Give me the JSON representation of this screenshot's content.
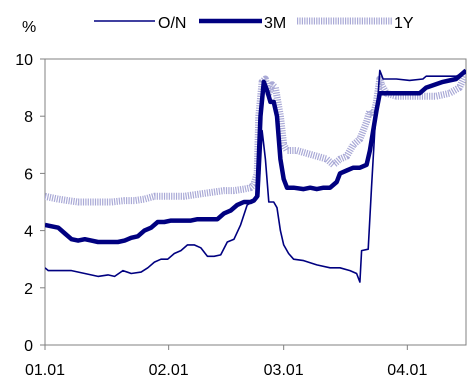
{
  "chart_data": {
    "type": "line",
    "title": "",
    "xlabel": "",
    "ylabel": "%",
    "ylim": [
      0,
      10
    ],
    "yticks": [
      0,
      2,
      4,
      6,
      8,
      10
    ],
    "xlim": [
      0,
      1.27
    ],
    "xticks": [
      {
        "value": 0.0,
        "label": "01.01"
      },
      {
        "value": 0.373,
        "label": "02.01"
      },
      {
        "value": 0.72,
        "label": "03.01"
      },
      {
        "value": 1.093,
        "label": "04.01"
      }
    ],
    "grid": false,
    "legend_position": "top",
    "series": [
      {
        "name": "O/N",
        "color": "#000080",
        "style": "thin",
        "points": [
          [
            0.0,
            2.7
          ],
          [
            0.01,
            2.6
          ],
          [
            0.04,
            2.6
          ],
          [
            0.08,
            2.6
          ],
          [
            0.12,
            2.5
          ],
          [
            0.16,
            2.4
          ],
          [
            0.19,
            2.45
          ],
          [
            0.21,
            2.4
          ],
          [
            0.235,
            2.6
          ],
          [
            0.26,
            2.5
          ],
          [
            0.29,
            2.55
          ],
          [
            0.31,
            2.7
          ],
          [
            0.33,
            2.9
          ],
          [
            0.35,
            3.0
          ],
          [
            0.37,
            3.0
          ],
          [
            0.39,
            3.2
          ],
          [
            0.41,
            3.3
          ],
          [
            0.43,
            3.5
          ],
          [
            0.45,
            3.5
          ],
          [
            0.47,
            3.4
          ],
          [
            0.49,
            3.1
          ],
          [
            0.51,
            3.1
          ],
          [
            0.53,
            3.15
          ],
          [
            0.55,
            3.6
          ],
          [
            0.57,
            3.7
          ],
          [
            0.59,
            4.2
          ],
          [
            0.61,
            4.9
          ],
          [
            0.625,
            5.0
          ],
          [
            0.635,
            5.1
          ],
          [
            0.645,
            5.2
          ],
          [
            0.655,
            7.5
          ],
          [
            0.665,
            6.5
          ],
          [
            0.675,
            5.0
          ],
          [
            0.69,
            5.0
          ],
          [
            0.7,
            4.8
          ],
          [
            0.71,
            4.0
          ],
          [
            0.72,
            3.5
          ],
          [
            0.735,
            3.2
          ],
          [
            0.75,
            3.0
          ],
          [
            0.78,
            2.95
          ],
          [
            0.82,
            2.8
          ],
          [
            0.86,
            2.7
          ],
          [
            0.89,
            2.7
          ],
          [
            0.92,
            2.6
          ],
          [
            0.94,
            2.5
          ],
          [
            0.95,
            2.2
          ],
          [
            0.955,
            3.3
          ],
          [
            0.975,
            3.35
          ],
          [
            0.985,
            5.5
          ],
          [
            0.995,
            7.5
          ],
          [
            1.005,
            8.8
          ],
          [
            1.01,
            9.6
          ],
          [
            1.02,
            9.3
          ],
          [
            1.06,
            9.3
          ],
          [
            1.1,
            9.25
          ],
          [
            1.14,
            9.3
          ],
          [
            1.15,
            9.4
          ],
          [
            1.2,
            9.4
          ],
          [
            1.24,
            9.4
          ],
          [
            1.26,
            9.5
          ],
          [
            1.27,
            9.5
          ]
        ]
      },
      {
        "name": "3M",
        "color": "#000080",
        "style": "thick",
        "points": [
          [
            0.0,
            4.2
          ],
          [
            0.02,
            4.15
          ],
          [
            0.04,
            4.1
          ],
          [
            0.06,
            3.9
          ],
          [
            0.08,
            3.7
          ],
          [
            0.1,
            3.65
          ],
          [
            0.12,
            3.7
          ],
          [
            0.14,
            3.65
          ],
          [
            0.16,
            3.6
          ],
          [
            0.18,
            3.6
          ],
          [
            0.2,
            3.6
          ],
          [
            0.22,
            3.6
          ],
          [
            0.24,
            3.65
          ],
          [
            0.26,
            3.75
          ],
          [
            0.28,
            3.8
          ],
          [
            0.3,
            4.0
          ],
          [
            0.32,
            4.1
          ],
          [
            0.34,
            4.3
          ],
          [
            0.36,
            4.3
          ],
          [
            0.38,
            4.35
          ],
          [
            0.4,
            4.35
          ],
          [
            0.42,
            4.35
          ],
          [
            0.44,
            4.35
          ],
          [
            0.46,
            4.4
          ],
          [
            0.48,
            4.4
          ],
          [
            0.5,
            4.4
          ],
          [
            0.52,
            4.4
          ],
          [
            0.54,
            4.6
          ],
          [
            0.56,
            4.7
          ],
          [
            0.58,
            4.9
          ],
          [
            0.6,
            5.0
          ],
          [
            0.62,
            5.0
          ],
          [
            0.63,
            5.05
          ],
          [
            0.64,
            5.2
          ],
          [
            0.65,
            8.0
          ],
          [
            0.66,
            9.2
          ],
          [
            0.67,
            8.9
          ],
          [
            0.68,
            8.5
          ],
          [
            0.69,
            8.5
          ],
          [
            0.7,
            8.0
          ],
          [
            0.71,
            6.5
          ],
          [
            0.72,
            5.8
          ],
          [
            0.73,
            5.5
          ],
          [
            0.75,
            5.5
          ],
          [
            0.78,
            5.45
          ],
          [
            0.8,
            5.5
          ],
          [
            0.82,
            5.45
          ],
          [
            0.84,
            5.5
          ],
          [
            0.86,
            5.5
          ],
          [
            0.88,
            5.7
          ],
          [
            0.89,
            6.0
          ],
          [
            0.91,
            6.1
          ],
          [
            0.93,
            6.2
          ],
          [
            0.95,
            6.2
          ],
          [
            0.97,
            6.3
          ],
          [
            0.98,
            6.8
          ],
          [
            0.99,
            7.5
          ],
          [
            1.0,
            8.2
          ],
          [
            1.01,
            8.8
          ],
          [
            1.05,
            8.8
          ],
          [
            1.09,
            8.8
          ],
          [
            1.13,
            8.8
          ],
          [
            1.15,
            9.0
          ],
          [
            1.2,
            9.2
          ],
          [
            1.24,
            9.3
          ],
          [
            1.26,
            9.5
          ],
          [
            1.27,
            9.6
          ]
        ]
      },
      {
        "name": "1Y",
        "color": "#A9A9D6",
        "style": "hatched",
        "points": [
          [
            0.0,
            5.2
          ],
          [
            0.02,
            5.15
          ],
          [
            0.04,
            5.1
          ],
          [
            0.07,
            5.05
          ],
          [
            0.1,
            5.0
          ],
          [
            0.13,
            5.0
          ],
          [
            0.16,
            5.0
          ],
          [
            0.2,
            5.0
          ],
          [
            0.24,
            5.05
          ],
          [
            0.27,
            5.05
          ],
          [
            0.3,
            5.1
          ],
          [
            0.33,
            5.2
          ],
          [
            0.36,
            5.2
          ],
          [
            0.39,
            5.2
          ],
          [
            0.42,
            5.2
          ],
          [
            0.45,
            5.25
          ],
          [
            0.48,
            5.3
          ],
          [
            0.51,
            5.35
          ],
          [
            0.54,
            5.4
          ],
          [
            0.57,
            5.4
          ],
          [
            0.6,
            5.45
          ],
          [
            0.62,
            5.5
          ],
          [
            0.63,
            5.6
          ],
          [
            0.64,
            6.0
          ],
          [
            0.645,
            8.0
          ],
          [
            0.655,
            9.2
          ],
          [
            0.665,
            9.3
          ],
          [
            0.675,
            8.8
          ],
          [
            0.685,
            9.1
          ],
          [
            0.695,
            9.0
          ],
          [
            0.71,
            8.0
          ],
          [
            0.72,
            7.0
          ],
          [
            0.73,
            6.8
          ],
          [
            0.76,
            6.8
          ],
          [
            0.79,
            6.7
          ],
          [
            0.82,
            6.6
          ],
          [
            0.85,
            6.5
          ],
          [
            0.87,
            6.3
          ],
          [
            0.89,
            6.5
          ],
          [
            0.91,
            6.6
          ],
          [
            0.93,
            7.0
          ],
          [
            0.95,
            7.2
          ],
          [
            0.97,
            7.8
          ],
          [
            0.98,
            8.2
          ],
          [
            0.99,
            8.0
          ],
          [
            1.0,
            8.5
          ],
          [
            1.01,
            9.3
          ],
          [
            1.015,
            9.1
          ],
          [
            1.03,
            8.8
          ],
          [
            1.06,
            8.7
          ],
          [
            1.1,
            8.7
          ],
          [
            1.14,
            8.7
          ],
          [
            1.18,
            8.7
          ],
          [
            1.22,
            8.8
          ],
          [
            1.25,
            9.0
          ],
          [
            1.27,
            9.5
          ]
        ]
      }
    ]
  }
}
